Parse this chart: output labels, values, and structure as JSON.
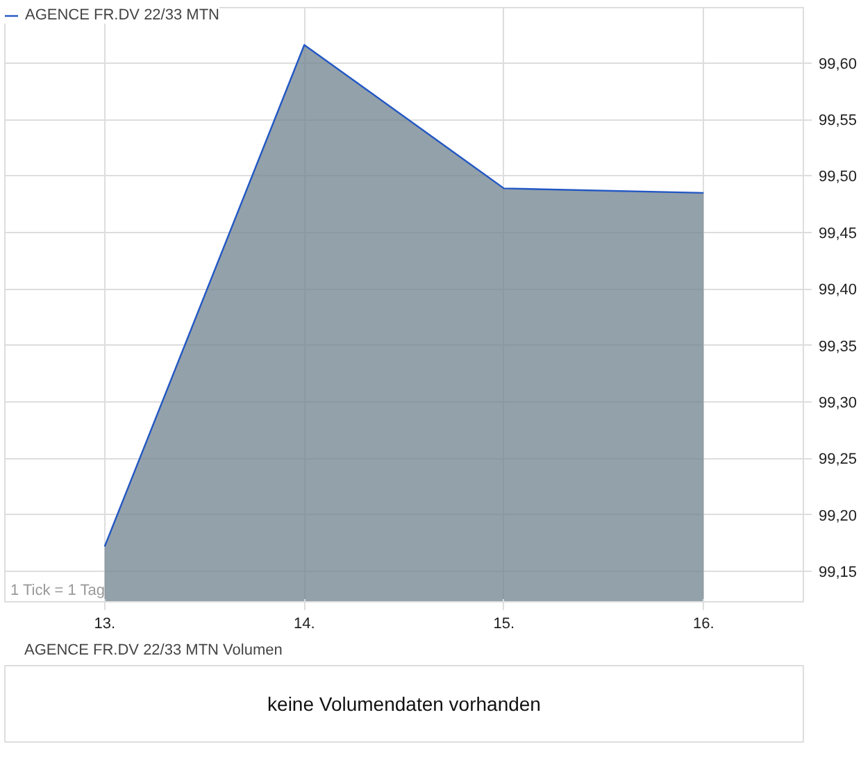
{
  "chart_data": [
    {
      "type": "area",
      "x": [
        13,
        14,
        15,
        16
      ],
      "series": [
        {
          "name": "AGENCE FR.DV 22/33 MTN",
          "color": "#2257c4",
          "values": [
            99.172,
            99.616,
            99.489,
            99.485
          ]
        }
      ],
      "xlim": [
        12.5,
        16.5
      ],
      "xticks": [
        {
          "value": 13,
          "label": "13."
        },
        {
          "value": 14,
          "label": "14."
        },
        {
          "value": 15,
          "label": "15."
        },
        {
          "value": 16,
          "label": "16."
        }
      ],
      "ylim": [
        99.123,
        99.649
      ],
      "yticks": [
        {
          "value": 99.15,
          "label": "99,15"
        },
        {
          "value": 99.2,
          "label": "99,20"
        },
        {
          "value": 99.25,
          "label": "99,25"
        },
        {
          "value": 99.3,
          "label": "99,30"
        },
        {
          "value": 99.35,
          "label": "99,35"
        },
        {
          "value": 99.4,
          "label": "99,40"
        },
        {
          "value": 99.45,
          "label": "99,45"
        },
        {
          "value": 99.5,
          "label": "99,50"
        },
        {
          "value": 99.55,
          "label": "99,55"
        },
        {
          "value": 99.6,
          "label": "99,60"
        }
      ],
      "grid": true,
      "legend": "top left",
      "annotations": [
        "1 Tick = 1 Tag"
      ]
    },
    {
      "type": "other",
      "title": "AGENCE FR.DV 22/33 MTN Volumen",
      "annotations": [
        "keine Volumendaten vorhanden"
      ]
    }
  ]
}
